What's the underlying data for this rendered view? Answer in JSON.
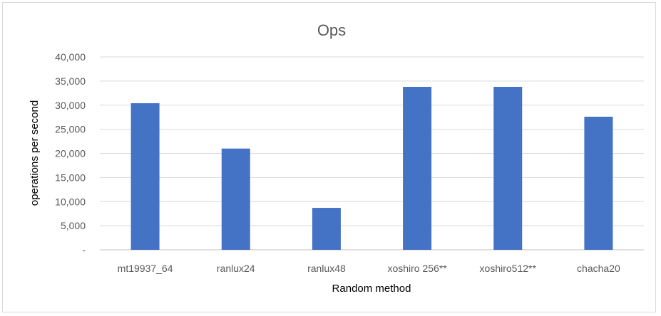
{
  "chart_data": {
    "type": "bar",
    "title": "Ops",
    "xlabel": "Random method",
    "ylabel": "operations per second",
    "categories": [
      "mt19937_64",
      "ranlux24",
      "ranlux48",
      "xoshiro 256**",
      "xoshiro512**",
      "chacha20"
    ],
    "values": [
      30400,
      21000,
      8700,
      33800,
      33800,
      27600
    ],
    "ylim": [
      0,
      40000
    ],
    "yticks": [
      0,
      5000,
      10000,
      15000,
      20000,
      25000,
      30000,
      35000,
      40000
    ],
    "ytick_labels": [
      "-",
      "5,000",
      "10,000",
      "15,000",
      "20,000",
      "25,000",
      "30,000",
      "35,000",
      "40,000"
    ],
    "grid": true,
    "legend": "none",
    "bar_color": "#4472c4"
  }
}
